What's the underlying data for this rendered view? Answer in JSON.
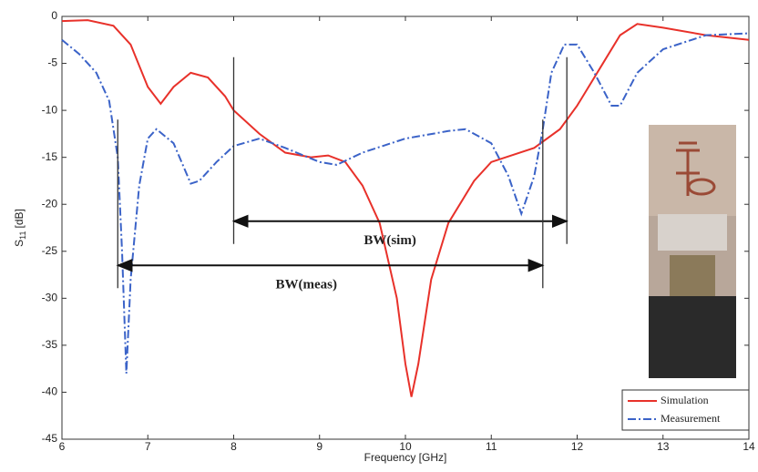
{
  "chart_data": {
    "type": "line",
    "xlabel": "Frequency [GHz]",
    "ylabel": {
      "symbol": "S",
      "subscript": "11",
      "unit": "[dB]"
    },
    "xlim": [
      6,
      14
    ],
    "xticks": [
      6,
      7,
      8,
      9,
      10,
      11,
      12,
      13,
      14
    ],
    "ylim": [
      -45,
      0
    ],
    "yticks": [
      -45,
      -40,
      -35,
      -30,
      -25,
      -20,
      -15,
      -10,
      -5,
      0
    ],
    "legend": "lower right",
    "series": [
      {
        "name": "Simulation",
        "color": "#e8312a",
        "dash": "solid",
        "x": [
          6,
          6.3,
          6.6,
          6.8,
          7.0,
          7.15,
          7.3,
          7.5,
          7.7,
          7.9,
          8.0,
          8.3,
          8.6,
          8.9,
          9.1,
          9.3,
          9.5,
          9.7,
          9.9,
          10.0,
          10.07,
          10.15,
          10.3,
          10.5,
          10.8,
          11.0,
          11.5,
          11.8,
          12.0,
          12.3,
          12.5,
          12.7,
          13.0,
          13.5,
          14
        ],
        "values": [
          -0.5,
          -0.4,
          -1,
          -3,
          -7.5,
          -9.3,
          -7.5,
          -6,
          -6.5,
          -8.5,
          -10,
          -12.5,
          -14.5,
          -15,
          -14.8,
          -15.5,
          -18,
          -22,
          -30,
          -37,
          -40.5,
          -37,
          -28,
          -22,
          -17.5,
          -15.5,
          -14,
          -12,
          -9.5,
          -5,
          -2,
          -0.8,
          -1.2,
          -2,
          -2.5
        ]
      },
      {
        "name": "Measurement",
        "color": "#3b63c8",
        "dash": "dash-dot",
        "x": [
          6,
          6.2,
          6.4,
          6.55,
          6.65,
          6.7,
          6.75,
          6.8,
          6.9,
          7.0,
          7.1,
          7.3,
          7.5,
          7.6,
          7.8,
          8.0,
          8.3,
          8.6,
          9.0,
          9.2,
          9.5,
          10.0,
          10.5,
          10.7,
          11.0,
          11.2,
          11.35,
          11.5,
          11.6,
          11.7,
          11.85,
          12.0,
          12.2,
          12.4,
          12.5,
          12.7,
          13.0,
          13.5,
          14
        ],
        "values": [
          -2.5,
          -4,
          -6,
          -9,
          -15,
          -25,
          -38,
          -28,
          -18,
          -13,
          -12,
          -13.5,
          -17.8,
          -17.5,
          -15.5,
          -13.8,
          -13,
          -14,
          -15.5,
          -15.8,
          -14.5,
          -13,
          -12.2,
          -12,
          -13.5,
          -17,
          -21,
          -17,
          -12,
          -6,
          -3,
          -3,
          -6,
          -9.5,
          -9.5,
          -6,
          -3.5,
          -2,
          -1.8
        ]
      }
    ],
    "annotations": [
      {
        "text": "BW(sim)",
        "x": [
          8.0,
          11.88
        ],
        "y": -21.8
      },
      {
        "text": "BW(meas)",
        "x": [
          6.65,
          11.6
        ],
        "y": -26.5
      }
    ]
  }
}
